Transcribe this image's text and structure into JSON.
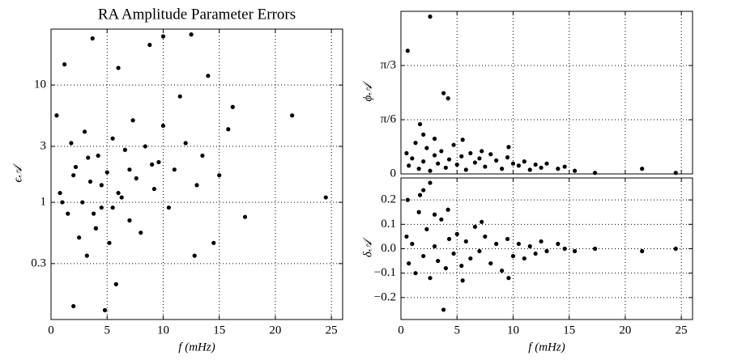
{
  "chart_data": [
    {
      "type": "scatter",
      "title": "RA Amplitude Parameter Errors",
      "xlabel": "f (mHz)",
      "ylabel": "ϵ𝒜",
      "color": "#000000",
      "grid": true,
      "ylog": true,
      "show_xtick_labels": true,
      "xlim": [
        0,
        26
      ],
      "xticks": [
        0,
        5,
        10,
        15,
        20,
        25
      ],
      "ylim": [
        0.1,
        30
      ],
      "yticks": [
        0.3,
        1,
        3,
        10
      ],
      "x": [
        0.5,
        0.8,
        1.2,
        1.5,
        1.8,
        2.0,
        2.2,
        2.5,
        2.8,
        3.0,
        3.2,
        3.5,
        3.7,
        4.0,
        4.2,
        4.5,
        4.8,
        5.0,
        5.2,
        5.5,
        5.8,
        6.0,
        6.3,
        6.6,
        7.0,
        7.3,
        7.6,
        8.0,
        8.4,
        8.8,
        9.2,
        9.6,
        10.0,
        10.5,
        11.0,
        11.5,
        12.0,
        12.5,
        13.0,
        13.5,
        14.0,
        14.5,
        15.0,
        15.8,
        16.2,
        17.3,
        21.5,
        24.5,
        3.8,
        4.5,
        5.5,
        6.0,
        2.0,
        3.3,
        1.0,
        7.0,
        9.0,
        10.0,
        12.8,
        4.0
      ],
      "y": [
        5.5,
        1.2,
        15,
        0.8,
        3.2,
        0.13,
        2.0,
        0.5,
        1.0,
        4.0,
        0.35,
        1.5,
        25,
        0.6,
        2.5,
        0.9,
        0.12,
        1.8,
        0.45,
        3.5,
        0.2,
        14,
        1.1,
        2.8,
        0.7,
        5.0,
        1.6,
        0.55,
        3.0,
        22,
        1.3,
        2.2,
        4.5,
        0.9,
        1.9,
        8,
        3.2,
        27,
        1.4,
        2.5,
        12,
        0.45,
        1.7,
        4.2,
        6.5,
        0.75,
        5.5,
        1.1,
        0.8,
        1.4,
        0.9,
        1.2,
        1.7,
        2.4,
        1.0,
        1.9,
        2.1,
        26,
        0.35,
        0.6
      ]
    },
    {
      "type": "scatter",
      "ylabel": "ϕ𝒜",
      "color": "#000000",
      "grid": true,
      "ylog": false,
      "show_xtick_labels": false,
      "xlim": [
        0,
        26
      ],
      "xticks": [
        0,
        5,
        10,
        15,
        20,
        25
      ],
      "ylim": [
        0,
        1.5708
      ],
      "yticks": [
        0,
        {
          "value": 0.5236,
          "label": "π/6"
        },
        {
          "value": 1.0472,
          "label": "π/3"
        }
      ],
      "x": [
        0.5,
        0.7,
        1.0,
        1.3,
        1.6,
        2.0,
        2.3,
        2.6,
        3.0,
        3.3,
        3.6,
        4.0,
        4.3,
        4.7,
        5.0,
        5.4,
        5.8,
        6.2,
        6.6,
        7.0,
        7.5,
        8.0,
        8.5,
        9.0,
        9.5,
        10.0,
        10.5,
        11.0,
        11.5,
        12.0,
        12.5,
        13.0,
        14.0,
        14.6,
        15.5,
        17.3,
        21.5,
        24.5,
        2.6,
        0.6,
        1.7,
        3.8,
        4.2,
        2.0,
        3.0,
        5.5,
        7.2,
        9.6
      ],
      "y": [
        0.2,
        0.08,
        0.15,
        0.3,
        0.05,
        0.12,
        0.25,
        0.03,
        0.18,
        0.1,
        0.22,
        0.06,
        0.14,
        0.28,
        0.09,
        0.17,
        0.04,
        0.2,
        0.11,
        0.15,
        0.07,
        0.19,
        0.13,
        0.05,
        0.16,
        0.1,
        0.08,
        0.12,
        0.04,
        0.09,
        0.06,
        0.1,
        0.05,
        0.07,
        0.03,
        0.01,
        0.05,
        0.01,
        1.52,
        1.19,
        0.48,
        0.78,
        0.73,
        0.38,
        0.34,
        0.33,
        0.22,
        0.26
      ]
    },
    {
      "type": "scatter",
      "xlabel": "f (mHz)",
      "ylabel": "δ𝒜",
      "color": "#000000",
      "grid": true,
      "ylog": false,
      "show_xtick_labels": true,
      "xlim": [
        0,
        26
      ],
      "xticks": [
        0,
        5,
        10,
        15,
        20,
        25
      ],
      "ylim": [
        -0.29,
        0.29
      ],
      "yticks": [
        {
          "value": -0.2,
          "label": "−0.2"
        },
        {
          "value": -0.1,
          "label": "−0.1"
        },
        {
          "value": 0,
          "label": "0.0"
        },
        0.1,
        0.2
      ],
      "x": [
        0.5,
        0.7,
        1.0,
        1.3,
        1.6,
        2.0,
        2.3,
        2.6,
        3.0,
        3.3,
        3.6,
        4.0,
        4.3,
        4.7,
        5.0,
        5.4,
        5.8,
        6.2,
        6.6,
        7.0,
        7.5,
        8.0,
        8.5,
        9.0,
        9.5,
        10.0,
        10.5,
        11.0,
        11.5,
        12.0,
        12.5,
        13.0,
        14.0,
        14.6,
        15.5,
        17.3,
        21.5,
        24.5,
        2.6,
        0.6,
        1.7,
        3.8,
        4.2,
        2.0,
        3.0,
        5.5,
        7.2,
        9.6
      ],
      "y": [
        0.05,
        -0.06,
        0.02,
        -0.1,
        0.15,
        -0.03,
        0.08,
        -0.12,
        0.01,
        -0.05,
        0.12,
        -0.08,
        0.04,
        -0.02,
        0.06,
        -0.07,
        0.03,
        -0.04,
        0.09,
        -0.01,
        0.05,
        -0.06,
        0.02,
        -0.09,
        0.04,
        -0.03,
        0.02,
        -0.04,
        0.01,
        -0.02,
        0.03,
        -0.01,
        0.02,
        0.0,
        -0.01,
        0.0,
        -0.01,
        0.0,
        0.27,
        0.2,
        0.22,
        -0.25,
        0.16,
        0.24,
        0.14,
        -0.13,
        0.11,
        -0.12
      ]
    }
  ]
}
